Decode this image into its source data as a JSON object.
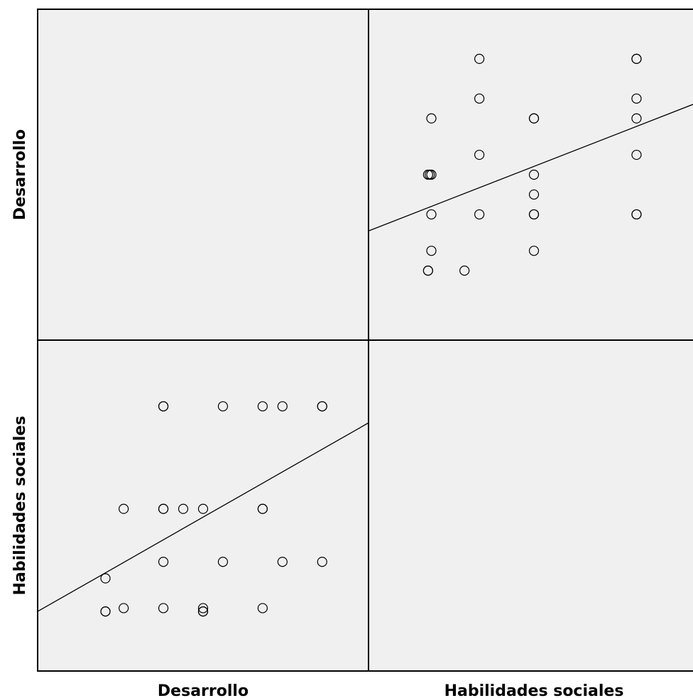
{
  "chart_data": {
    "type": "scatter",
    "variables": [
      "Desarrollo",
      "Habilidades sociales"
    ],
    "axis_labels": {
      "x": [
        "Desarrollo",
        "Habilidades sociales"
      ],
      "y": [
        "Desarrollo",
        "Habilidades sociales"
      ]
    },
    "grid": false,
    "panel_background": "#f0f0f0",
    "marker": "open-circle",
    "panels": [
      {
        "row": 0,
        "col": 1,
        "x_variable": "Habilidades sociales",
        "y_variable": "Desarrollo",
        "xlim": [
          0,
          100
        ],
        "ylim": [
          0,
          100
        ],
        "points": [
          [
            33.5,
            85
          ],
          [
            81,
            85
          ],
          [
            81,
            85
          ],
          [
            33.5,
            73
          ],
          [
            81,
            73
          ],
          [
            19,
            67
          ],
          [
            50,
            67
          ],
          [
            50,
            67
          ],
          [
            81,
            67
          ],
          [
            33.5,
            56
          ],
          [
            81,
            56
          ],
          [
            18,
            50
          ],
          [
            18.5,
            50
          ],
          [
            19,
            50
          ],
          [
            50,
            50
          ],
          [
            50,
            44
          ],
          [
            19,
            38
          ],
          [
            33.5,
            38
          ],
          [
            50,
            38
          ],
          [
            50,
            38
          ],
          [
            81,
            38
          ],
          [
            81,
            38
          ],
          [
            19,
            27
          ],
          [
            50,
            27
          ],
          [
            18,
            21
          ],
          [
            18,
            21
          ],
          [
            29,
            21
          ]
        ],
        "fit_line": [
          [
            0,
            33
          ],
          [
            100,
            72
          ]
        ]
      },
      {
        "row": 1,
        "col": 0,
        "x_variable": "Desarrollo",
        "y_variable": "Habilidades sociales",
        "xlim": [
          0,
          100
        ],
        "ylim": [
          0,
          100
        ],
        "points": [
          [
            38,
            80
          ],
          [
            38,
            80
          ],
          [
            56,
            80
          ],
          [
            68,
            80
          ],
          [
            74,
            80
          ],
          [
            86,
            80
          ],
          [
            86,
            80
          ],
          [
            26,
            49
          ],
          [
            38,
            49
          ],
          [
            38,
            49
          ],
          [
            44,
            49
          ],
          [
            50,
            49
          ],
          [
            68,
            49
          ],
          [
            68,
            49
          ],
          [
            38,
            33
          ],
          [
            56,
            33
          ],
          [
            74,
            33
          ],
          [
            86,
            33
          ],
          [
            20.5,
            28
          ],
          [
            20.5,
            18
          ],
          [
            20.5,
            18
          ],
          [
            26,
            19
          ],
          [
            38,
            19
          ],
          [
            50,
            19
          ],
          [
            50,
            18
          ],
          [
            50,
            18
          ],
          [
            68,
            19
          ]
        ],
        "fit_line": [
          [
            0,
            18
          ],
          [
            100,
            75
          ]
        ]
      }
    ]
  }
}
